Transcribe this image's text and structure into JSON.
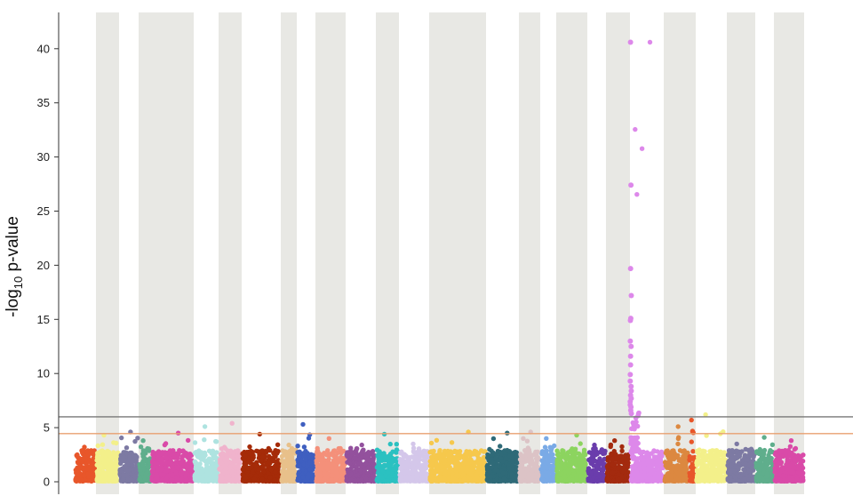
{
  "chart_data": {
    "type": "scatter",
    "subtype": "manhattan",
    "title": "",
    "xlabel": "",
    "ylabel": {
      "prefix": "-log",
      "subscript": "10",
      "suffix": " p-value"
    },
    "ylim": [
      0,
      43
    ],
    "yticks": [
      0,
      5,
      10,
      15,
      20,
      25,
      30,
      35,
      40
    ],
    "grid": false,
    "band_color": "#e8e8e4",
    "thresholds": [
      {
        "y": 6.0,
        "color": "#777777"
      },
      {
        "y": 4.45,
        "color": "#e8a070"
      }
    ],
    "segments": [
      {
        "color": "#e8562a",
        "max": 3.2,
        "band": false
      },
      {
        "color": "#f3f08a",
        "max": 4.3,
        "band": true
      },
      {
        "color": "#7d7aa3",
        "max": 4.6,
        "band": false
      },
      {
        "color": "#5fae8c",
        "max": 3.8,
        "band": true
      },
      {
        "color": "#d94aa8",
        "max": 4.5,
        "band": true
      },
      {
        "color": "#aee3e0",
        "max": 5.1,
        "band": false
      },
      {
        "color": "#f0b3cc",
        "max": 5.4,
        "band": true
      },
      {
        "color": "#a52b08",
        "max": 4.4,
        "band": false
      },
      {
        "color": "#e8c08a",
        "max": 3.4,
        "band": true
      },
      {
        "color": "#3f5fc0",
        "max": 5.3,
        "band": false
      },
      {
        "color": "#f4907a",
        "max": 4.0,
        "band": true
      },
      {
        "color": "#93519d",
        "max": 3.4,
        "band": false
      },
      {
        "color": "#2bc1c1",
        "max": 4.4,
        "band": true
      },
      {
        "color": "#d4c7ea",
        "max": 3.5,
        "band": false
      },
      {
        "color": "#f6c84c",
        "max": 4.6,
        "band": true
      },
      {
        "color": "#2f6a78",
        "max": 4.5,
        "band": false
      },
      {
        "color": "#dcc3c6",
        "max": 4.6,
        "band": true
      },
      {
        "color": "#7aaae6",
        "max": 4.0,
        "band": false
      },
      {
        "color": "#8cd45f",
        "max": 4.3,
        "band": true
      },
      {
        "color": "#6a3dac",
        "max": 3.4,
        "band": false
      },
      {
        "color": "#a32a0e",
        "max": 3.8,
        "band": true
      },
      {
        "color": "#dd88ea",
        "max": 40.6,
        "band": false
      },
      {
        "color": "#dc8840",
        "max": 5.1,
        "band": true
      },
      {
        "color": "#e8562a",
        "max": 5.7,
        "band": true
      },
      {
        "color": "#f3f08a",
        "max": 6.2,
        "band": false
      },
      {
        "color": "#7d7aa3",
        "max": 3.5,
        "band": true
      },
      {
        "color": "#5fae8c",
        "max": 4.1,
        "band": false
      },
      {
        "color": "#d94aa8",
        "max": 3.8,
        "band": true
      }
    ],
    "peak_points": [
      40.6,
      27.4,
      19.7,
      17.2,
      15.1,
      14.9,
      13.0,
      12.5,
      11.6,
      10.8,
      9.9,
      9.3,
      8.8,
      8.4,
      8.0,
      7.7,
      7.4,
      7.1,
      6.9,
      6.6,
      6.3
    ]
  }
}
